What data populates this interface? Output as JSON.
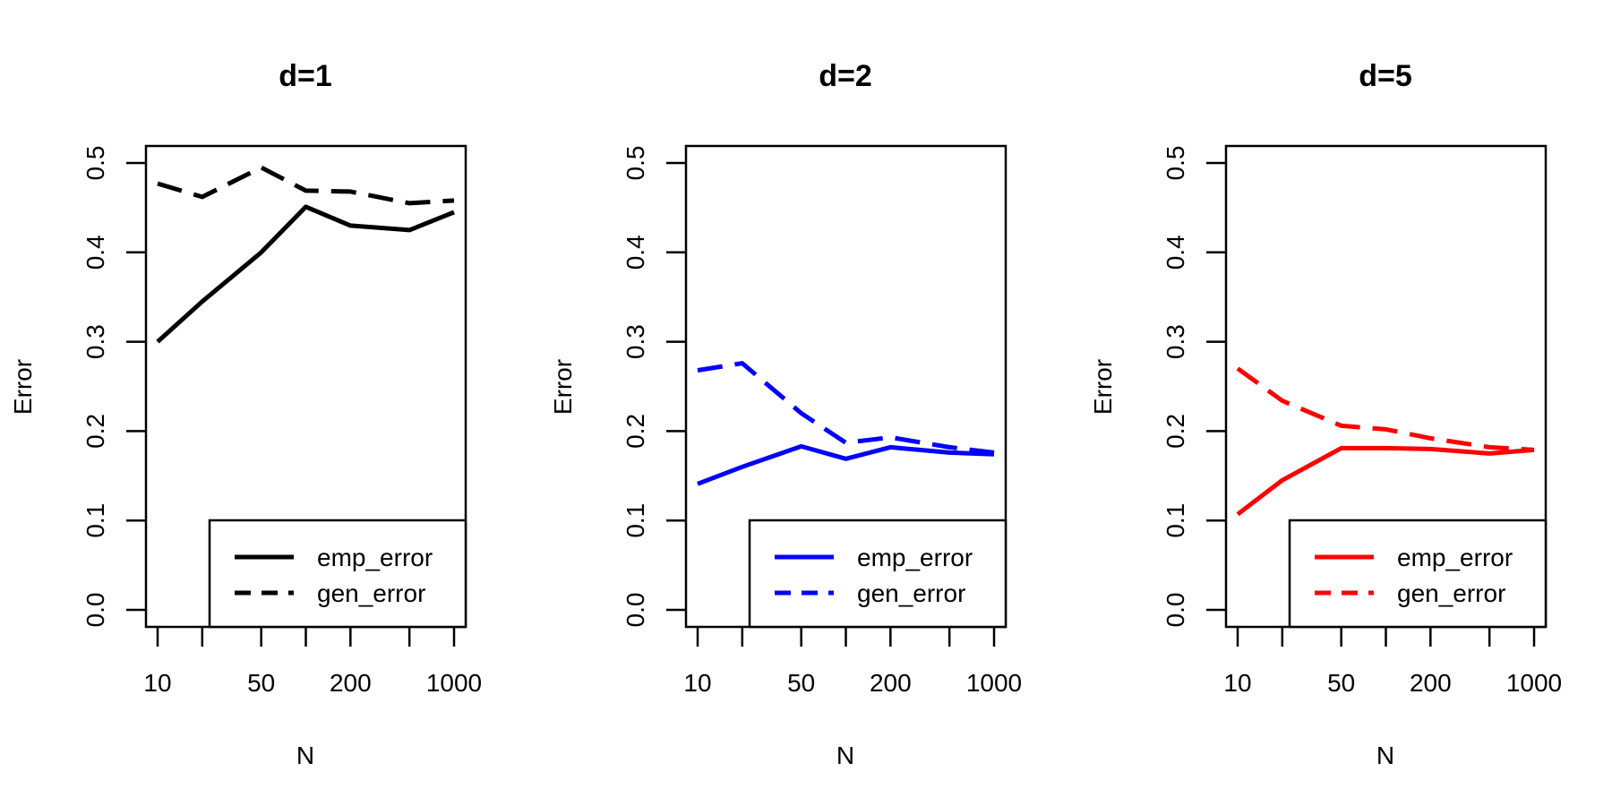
{
  "chart_data": [
    {
      "type": "line",
      "title": "d=1",
      "xlabel": "N",
      "ylabel": "Error",
      "x": [
        10,
        20,
        50,
        100,
        200,
        500,
        1000
      ],
      "x_tick_labels": [
        "10",
        "50",
        "200",
        "1000"
      ],
      "x_tick_values": [
        10,
        50,
        200,
        1000
      ],
      "x_minor_ticks": [
        20,
        100,
        500
      ],
      "y_ticks": [
        0.0,
        0.1,
        0.2,
        0.3,
        0.4,
        0.5
      ],
      "y_tick_labels": [
        "0.0",
        "0.1",
        "0.2",
        "0.3",
        "0.4",
        "0.5"
      ],
      "ylim": [
        0.0,
        0.5
      ],
      "x_scale": "log",
      "color": "#000000",
      "legend_position": "bottom-right",
      "series": [
        {
          "name": "emp_error",
          "style": "solid",
          "values": [
            0.3,
            0.345,
            0.4,
            0.451,
            0.43,
            0.425,
            0.445
          ]
        },
        {
          "name": "gen_error",
          "style": "dashed",
          "values": [
            0.477,
            0.462,
            0.495,
            0.469,
            0.468,
            0.455,
            0.458
          ]
        }
      ]
    },
    {
      "type": "line",
      "title": "d=2",
      "xlabel": "N",
      "ylabel": "Error",
      "x": [
        10,
        20,
        50,
        100,
        200,
        500,
        1000
      ],
      "x_tick_labels": [
        "10",
        "50",
        "200",
        "1000"
      ],
      "x_tick_values": [
        10,
        50,
        200,
        1000
      ],
      "x_minor_ticks": [
        20,
        100,
        500
      ],
      "y_ticks": [
        0.0,
        0.1,
        0.2,
        0.3,
        0.4,
        0.5
      ],
      "y_tick_labels": [
        "0.0",
        "0.1",
        "0.2",
        "0.3",
        "0.4",
        "0.5"
      ],
      "ylim": [
        0.0,
        0.5
      ],
      "x_scale": "log",
      "color": "#0000FF",
      "legend_position": "bottom-right",
      "series": [
        {
          "name": "emp_error",
          "style": "solid",
          "values": [
            0.141,
            0.16,
            0.183,
            0.169,
            0.182,
            0.176,
            0.174
          ]
        },
        {
          "name": "gen_error",
          "style": "dashed",
          "values": [
            0.268,
            0.276,
            0.22,
            0.187,
            0.193,
            0.182,
            0.176
          ]
        }
      ]
    },
    {
      "type": "line",
      "title": "d=5",
      "xlabel": "N",
      "ylabel": "Error",
      "x": [
        10,
        20,
        50,
        100,
        200,
        500,
        1000
      ],
      "x_tick_labels": [
        "10",
        "50",
        "200",
        "1000"
      ],
      "x_tick_values": [
        10,
        50,
        200,
        1000
      ],
      "x_minor_ticks": [
        20,
        100,
        500
      ],
      "y_ticks": [
        0.0,
        0.1,
        0.2,
        0.3,
        0.4,
        0.5
      ],
      "y_tick_labels": [
        "0.0",
        "0.1",
        "0.2",
        "0.3",
        "0.4",
        "0.5"
      ],
      "ylim": [
        0.0,
        0.5
      ],
      "x_scale": "log",
      "color": "#FF0000",
      "legend_position": "bottom-right",
      "series": [
        {
          "name": "emp_error",
          "style": "solid",
          "values": [
            0.107,
            0.145,
            0.181,
            0.181,
            0.18,
            0.175,
            0.179
          ]
        },
        {
          "name": "gen_error",
          "style": "dashed",
          "values": [
            0.27,
            0.234,
            0.206,
            0.202,
            0.192,
            0.182,
            0.179
          ]
        }
      ]
    }
  ]
}
